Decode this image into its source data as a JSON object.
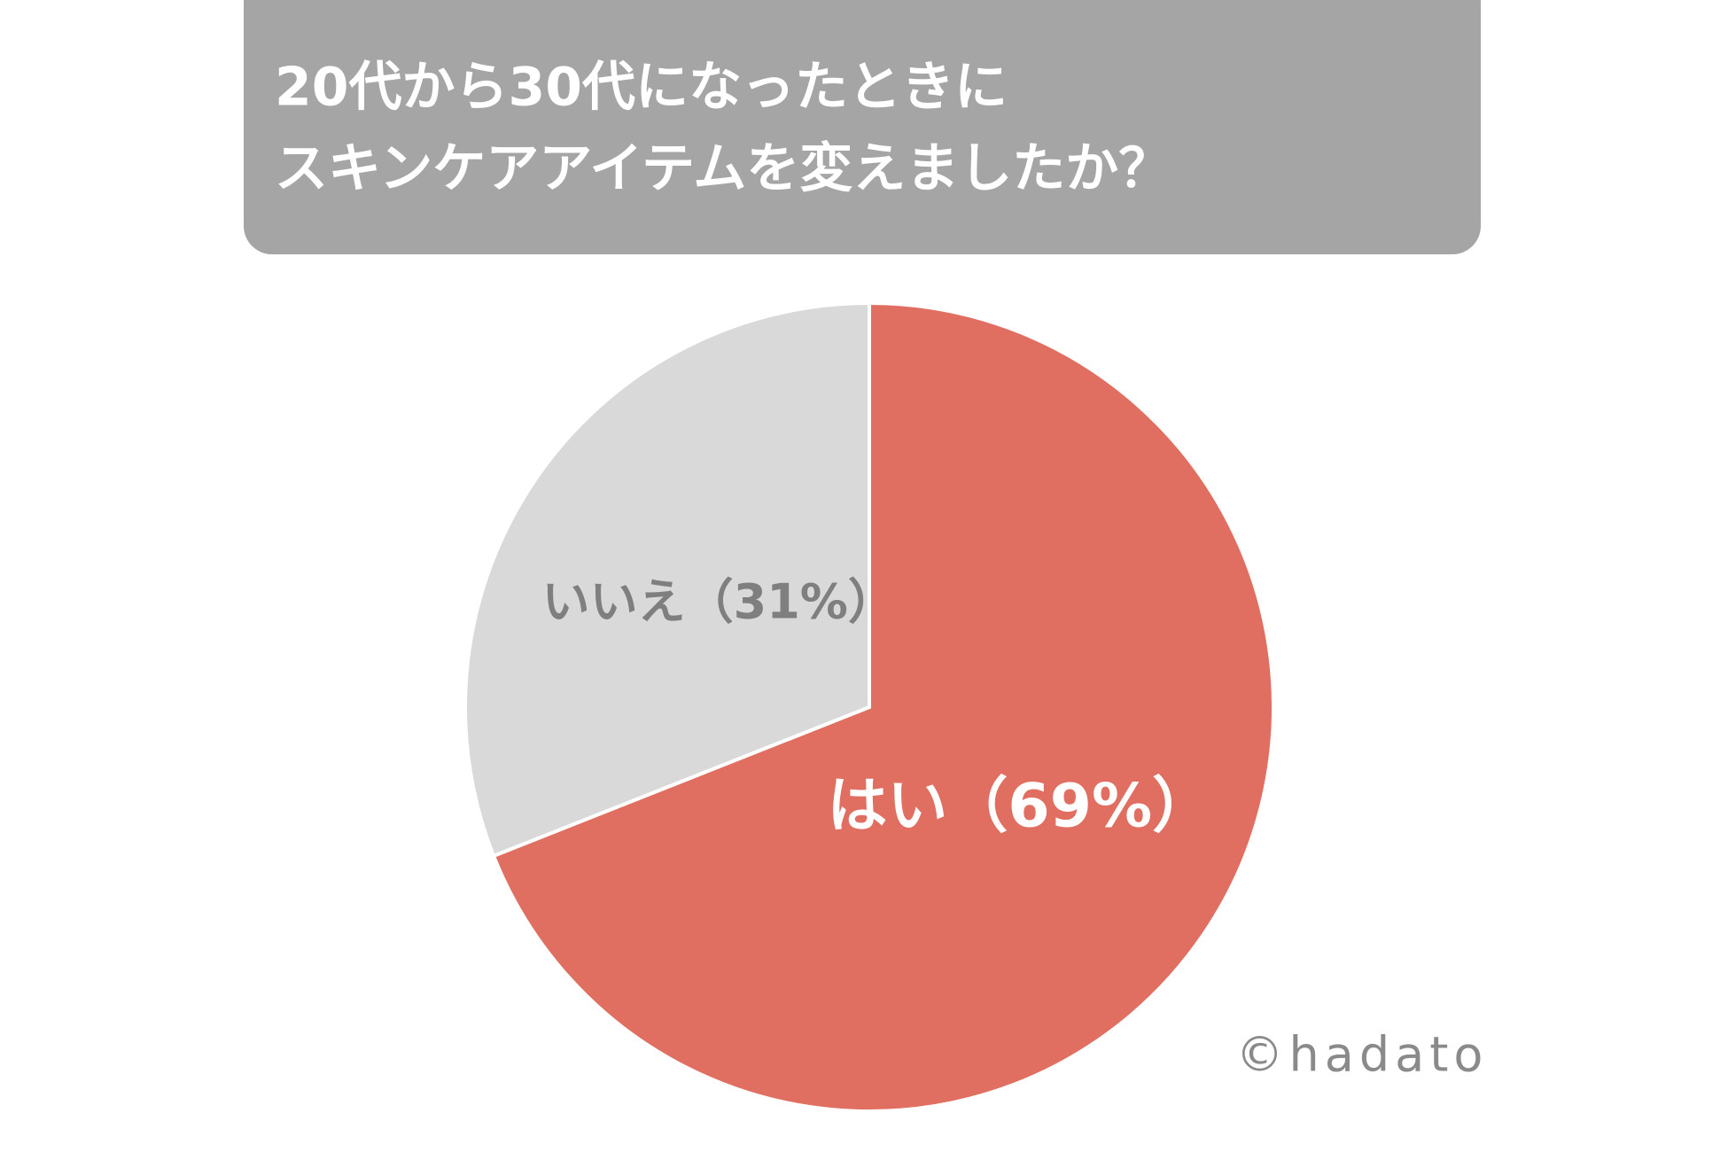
{
  "chart_data": {
    "type": "pie",
    "title_lines": [
      "20代から30代になったときに",
      "スキンケアアイテムを変えましたか？"
    ],
    "categories": [
      "はい",
      "いいえ"
    ],
    "values": [
      69,
      31
    ],
    "value_labels": [
      "（69%）",
      "（31%）"
    ],
    "colors": [
      "#e06f61",
      "#d9d9d9"
    ],
    "label_colors": [
      "#ffffff",
      "#7f7f7f"
    ],
    "watermark": "©hadato"
  }
}
